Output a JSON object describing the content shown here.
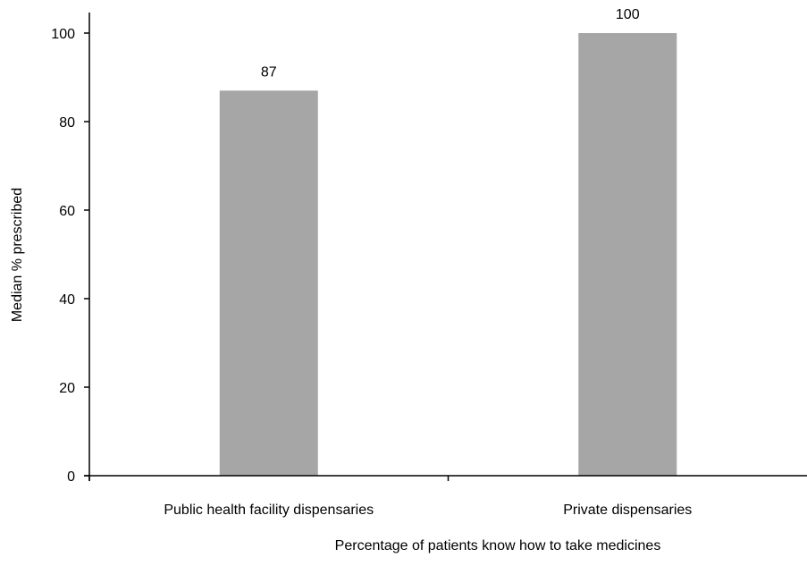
{
  "chart_data": {
    "type": "bar",
    "title": "",
    "xlabel": "Percentage of patients know how to take medicines",
    "ylabel": "Median % prescribed",
    "categories": [
      "Public health facility dispensaries",
      "Private dispensaries"
    ],
    "values": [
      87,
      100
    ],
    "value_labels": [
      "87",
      "100"
    ],
    "ylim": [
      0,
      100
    ],
    "yticks": [
      0,
      20,
      40,
      60,
      80,
      100
    ],
    "ytick_labels": [
      "0",
      "20",
      "40",
      "60",
      "80",
      "100"
    ],
    "grid": false,
    "legend": "none",
    "bar_color": "#a6a6a6",
    "axis_color": "#000000"
  }
}
